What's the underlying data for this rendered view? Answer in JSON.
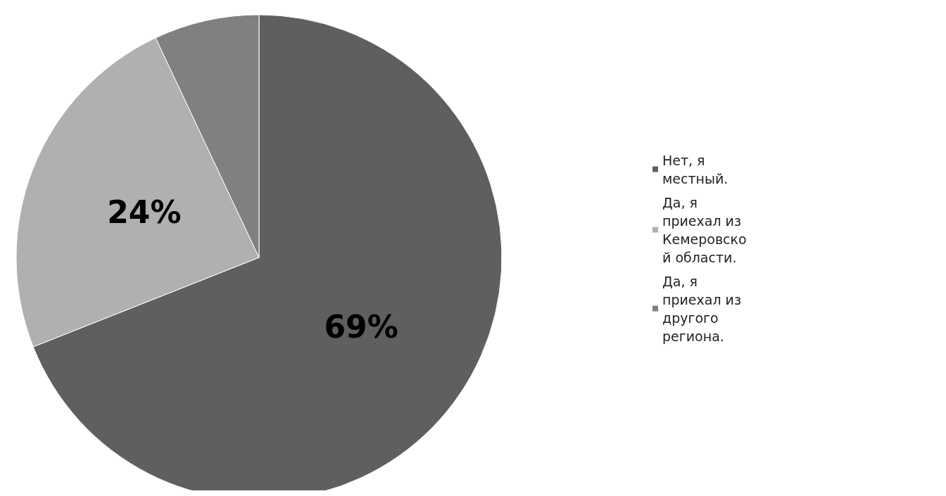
{
  "chart_data": {
    "type": "pie",
    "categories": [
      "Нет, я местный.",
      "Да, я приехал из Кемеровской области.",
      "Да, я приехал из другого региона."
    ],
    "values": [
      69,
      24,
      7
    ],
    "colors": [
      "#5f5f5f",
      "#b0b0b0",
      "#808080"
    ],
    "value_labels": [
      "69%",
      "24%",
      null
    ],
    "legend": "right"
  }
}
